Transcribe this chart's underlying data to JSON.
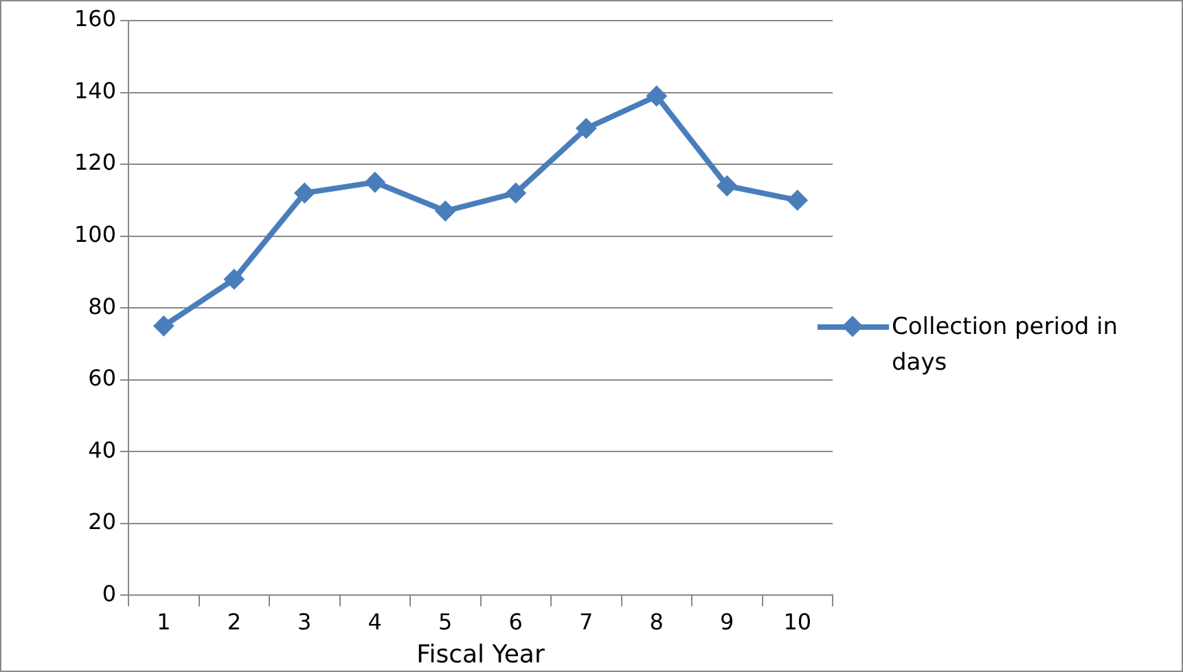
{
  "chart_data": {
    "type": "line",
    "xlabel": "Fiscal Year",
    "categories": [
      "1",
      "2",
      "3",
      "4",
      "5",
      "6",
      "7",
      "8",
      "9",
      "10"
    ],
    "series": [
      {
        "name": "Collection period in days",
        "color": "#4a7ebb",
        "values": [
          75,
          88,
          112,
          115,
          107,
          112,
          130,
          139,
          114,
          110
        ]
      }
    ],
    "ylim": [
      0,
      160
    ],
    "yticks": [
      0,
      20,
      40,
      60,
      80,
      100,
      120,
      140,
      160
    ],
    "grid": "y",
    "legend": "right",
    "marker": "diamond",
    "line_style": "solid"
  }
}
